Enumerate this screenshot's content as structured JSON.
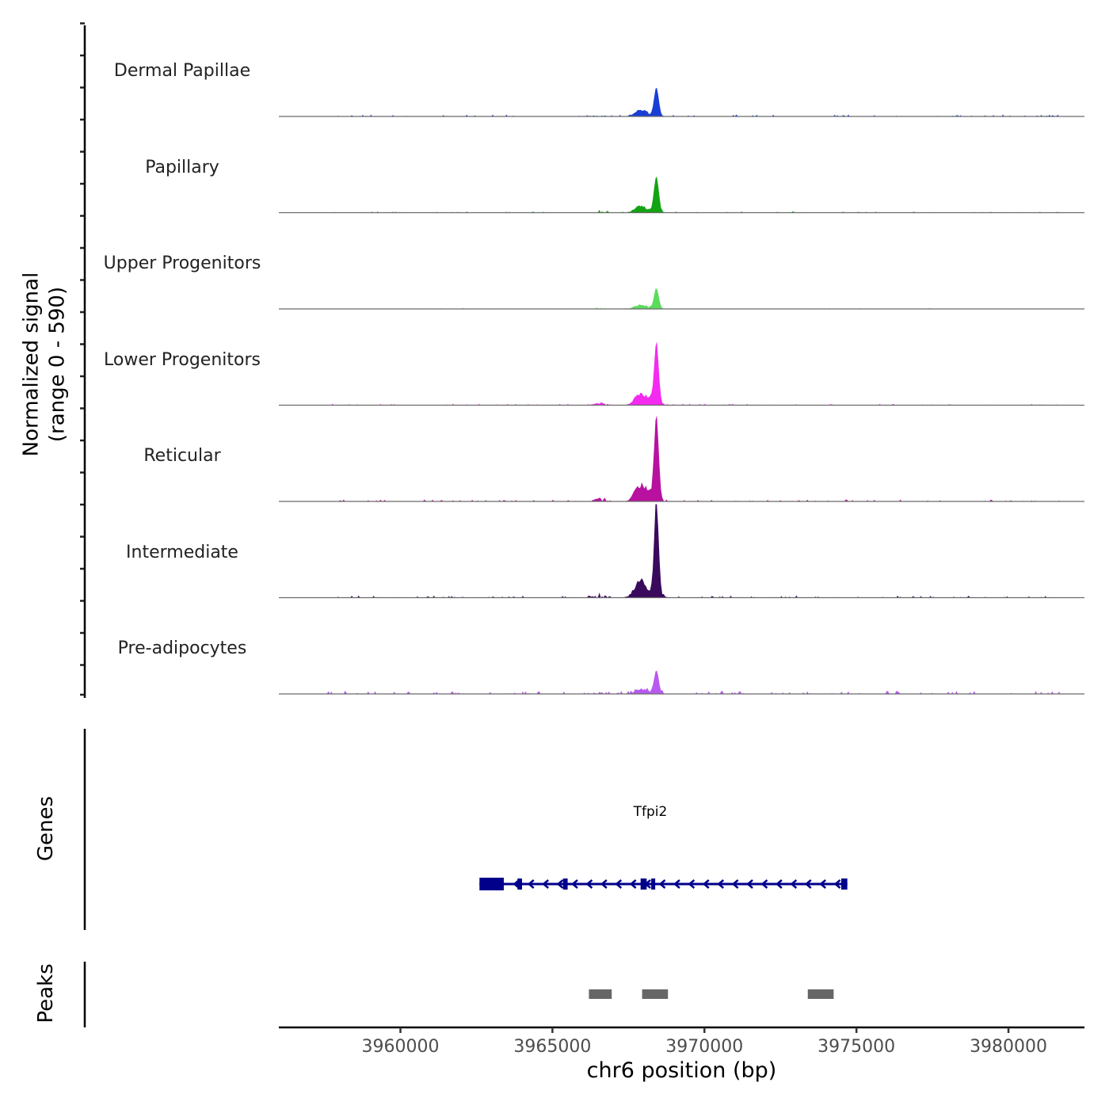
{
  "chart_data": {
    "type": "area",
    "title": "",
    "ylabel": "Normalized signal",
    "ylabel_range": "(range 0 - 590)",
    "xlabel": "chr6 position (bp)",
    "xlim": [
      3956000,
      3982500
    ],
    "xticks": [
      3960000,
      3965000,
      3970000,
      3975000,
      3980000
    ],
    "xtick_labels": [
      "3960000",
      "3965000",
      "3970000",
      "3975000",
      "3980000"
    ],
    "ylim": [
      0,
      590
    ],
    "tracks": [
      {
        "name": "Dermal Papillae",
        "color": "#1a3fd6",
        "peak": 180,
        "noise": 12,
        "seed": 11
      },
      {
        "name": "Papillary",
        "color": "#12a312",
        "peak": 230,
        "noise": 8,
        "seed": 22
      },
      {
        "name": "Upper Progenitors",
        "color": "#5cdb5c",
        "peak": 130,
        "noise": 5,
        "seed": 33
      },
      {
        "name": "Lower Progenitors",
        "color": "#f52af0",
        "peak": 390,
        "noise": 9,
        "seed": 44
      },
      {
        "name": "Reticular",
        "color": "#b8119f",
        "peak": 540,
        "noise": 12,
        "seed": 55
      },
      {
        "name": "Intermediate",
        "color": "#3a0a5c",
        "peak": 590,
        "noise": 14,
        "seed": 66
      },
      {
        "name": "Pre-adipocytes",
        "color": "#b75af0",
        "peak": 150,
        "noise": 20,
        "seed": 77
      }
    ],
    "genes_label": "Genes",
    "gene": {
      "name": "Tfpi2",
      "color": "#00008b",
      "start": 3962600,
      "end": 3974700,
      "strand": "-",
      "exons": [
        [
          3962600,
          3963400
        ],
        [
          3963850,
          3964000
        ],
        [
          3965350,
          3965500
        ],
        [
          3967900,
          3968100
        ],
        [
          3968250,
          3968350
        ],
        [
          3974500,
          3974700
        ]
      ]
    },
    "peaks_label": "Peaks",
    "peaks_color": "#666666",
    "peaks": [
      [
        3966200,
        3966950
      ],
      [
        3967950,
        3968800
      ],
      [
        3973400,
        3974250
      ]
    ]
  }
}
